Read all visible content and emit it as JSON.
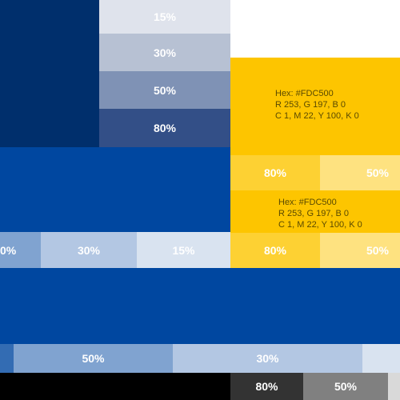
{
  "colors": {
    "navy": "#002f6c",
    "navy_15": "#dfe3ec",
    "navy_30": "#b7c1d3",
    "navy_50": "#7f92b5",
    "navy_80": "#334f87",
    "blue": "#0047a0",
    "blue_15": "#d9e3f0",
    "blue_30": "#b3c7e3",
    "blue_50": "#80a3d0",
    "blue_80": "#336cb3",
    "yellow": "#fdc500",
    "yellow_80": "#fdd133",
    "yellow_50": "#fee280",
    "black": "#000000",
    "black_80": "#333333",
    "black_50": "#808080",
    "black_15": "#d9d9d9",
    "white": "#ffffff"
  },
  "navy_swatch": {
    "tint_15": "15%",
    "tint_30": "30%",
    "tint_50": "50%",
    "tint_80": "80%"
  },
  "yellow_swatch_1": {
    "hex": "Hex: #FDC500",
    "rgb": "R 253, G 197, B 0",
    "cmyk": "C 1, M 22, Y 100, K 0"
  },
  "yellow_swatch_2": {
    "hex": "Hex: #FDC500",
    "rgb": "R 253, G 197, B 0",
    "cmyk": "C 1, M 22, Y 100, K 0"
  },
  "yellow_tints": {
    "row1_80": "80%",
    "row1_50": "50%",
    "row2_80": "80%",
    "row2_50": "50%"
  },
  "blue_tints_row1": {
    "tint_50_partial": "0%",
    "tint_30": "30%",
    "tint_15": "15%"
  },
  "blue_tints_row2": {
    "tint_50": "50%",
    "tint_30": "30%"
  },
  "black_tints": {
    "tint_80": "80%",
    "tint_50": "50%"
  }
}
